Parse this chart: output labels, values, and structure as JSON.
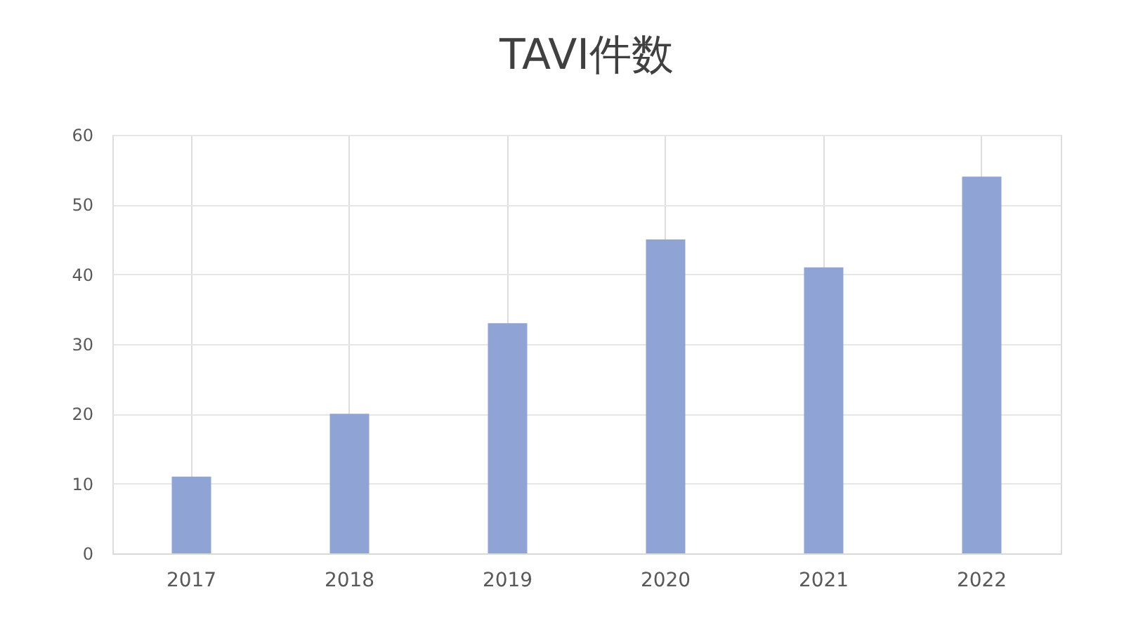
{
  "chart_data": {
    "type": "bar",
    "title": "TAVI件数",
    "categories": [
      "2017",
      "2018",
      "2019",
      "2020",
      "2021",
      "2022"
    ],
    "values": [
      11,
      20,
      33,
      45,
      41,
      54
    ],
    "color": "#8fa4d4",
    "ylim": [
      0,
      60
    ],
    "yticks": [
      0,
      10,
      20,
      30,
      40,
      50,
      60
    ],
    "grid": true
  }
}
